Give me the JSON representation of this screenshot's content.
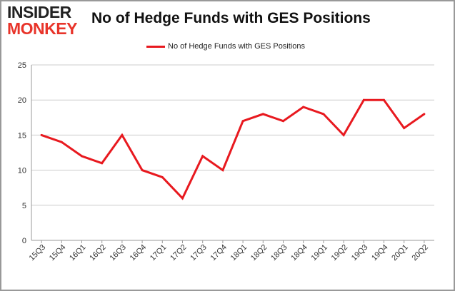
{
  "logo": {
    "line1": "INSIDER",
    "line2": "MONKEY"
  },
  "colors": {
    "series": "#e8191f",
    "grid": "#cccccc",
    "axis": "#999999",
    "text": "#333333",
    "logo_accent": "#e8342a"
  },
  "chart_data": {
    "type": "line",
    "title": "No of Hedge Funds with GES Positions",
    "xlabel": "",
    "ylabel": "",
    "ylim": [
      0,
      25
    ],
    "yticks": [
      0,
      5,
      10,
      15,
      20,
      25
    ],
    "grid": true,
    "legend_position": "top-center",
    "categories": [
      "15Q3",
      "15Q4",
      "16Q1",
      "16Q2",
      "16Q3",
      "16Q4",
      "17Q1",
      "17Q2",
      "17Q3",
      "17Q4",
      "18Q1",
      "18Q2",
      "18Q3",
      "18Q4",
      "19Q1",
      "19Q2",
      "19Q3",
      "19Q4",
      "20Q1",
      "20Q2"
    ],
    "series": [
      {
        "name": "No of Hedge Funds with GES Positions",
        "values": [
          15,
          14,
          12,
          11,
          15,
          10,
          9,
          6,
          12,
          10,
          17,
          18,
          17,
          19,
          18,
          15,
          20,
          20,
          16,
          18
        ]
      }
    ]
  }
}
